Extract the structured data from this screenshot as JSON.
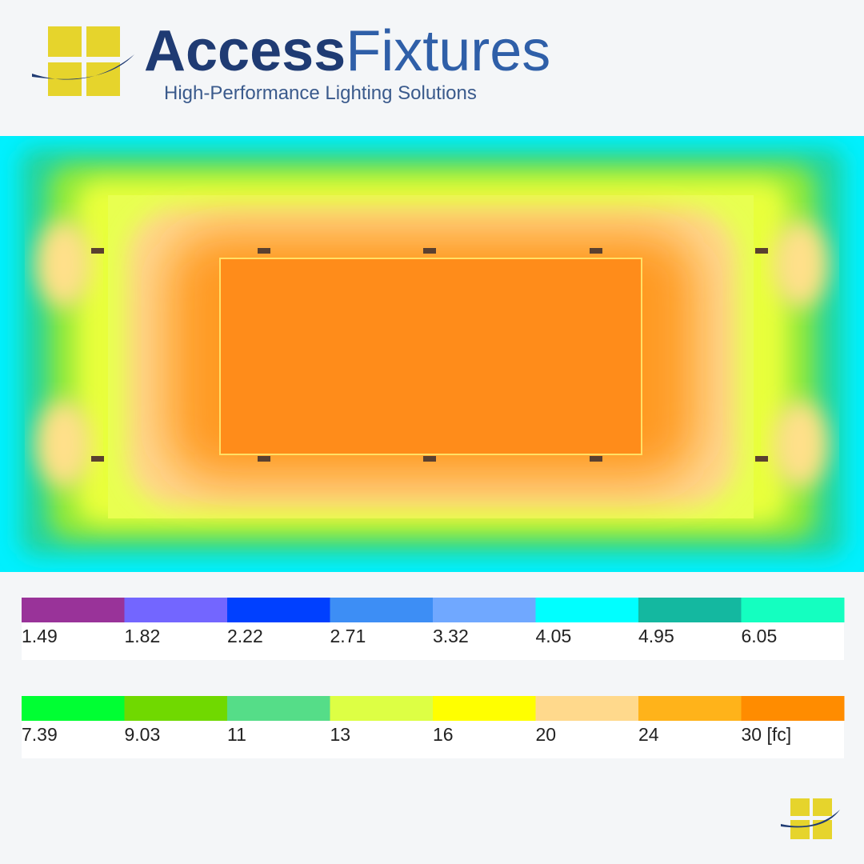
{
  "header": {
    "brand_first": "Access",
    "brand_second": "Fixtures",
    "tagline": "High-Performance Lighting Solutions"
  },
  "legend": {
    "rows": [
      {
        "items": [
          {
            "label": "1.49",
            "color": "#993399"
          },
          {
            "label": "1.82",
            "color": "#7366ff"
          },
          {
            "label": "2.22",
            "color": "#0040ff"
          },
          {
            "label": "2.71",
            "color": "#3d8ef5"
          },
          {
            "label": "3.32",
            "color": "#70a8ff"
          },
          {
            "label": "4.05",
            "color": "#00ffff"
          },
          {
            "label": "4.95",
            "color": "#14b8a0"
          },
          {
            "label": "6.05",
            "color": "#14ffc0"
          }
        ]
      },
      {
        "items": [
          {
            "label": "7.39",
            "color": "#00ff33"
          },
          {
            "label": "9.03",
            "color": "#70d900"
          },
          {
            "label": "11",
            "color": "#55dd88"
          },
          {
            "label": "13",
            "color": "#ddff44"
          },
          {
            "label": "16",
            "color": "#ffff00"
          },
          {
            "label": "20",
            "color": "#ffd98c"
          },
          {
            "label": "24",
            "color": "#ffb31a"
          },
          {
            "label": "30 [fc]",
            "color": "#ff8c00"
          }
        ]
      }
    ]
  }
}
